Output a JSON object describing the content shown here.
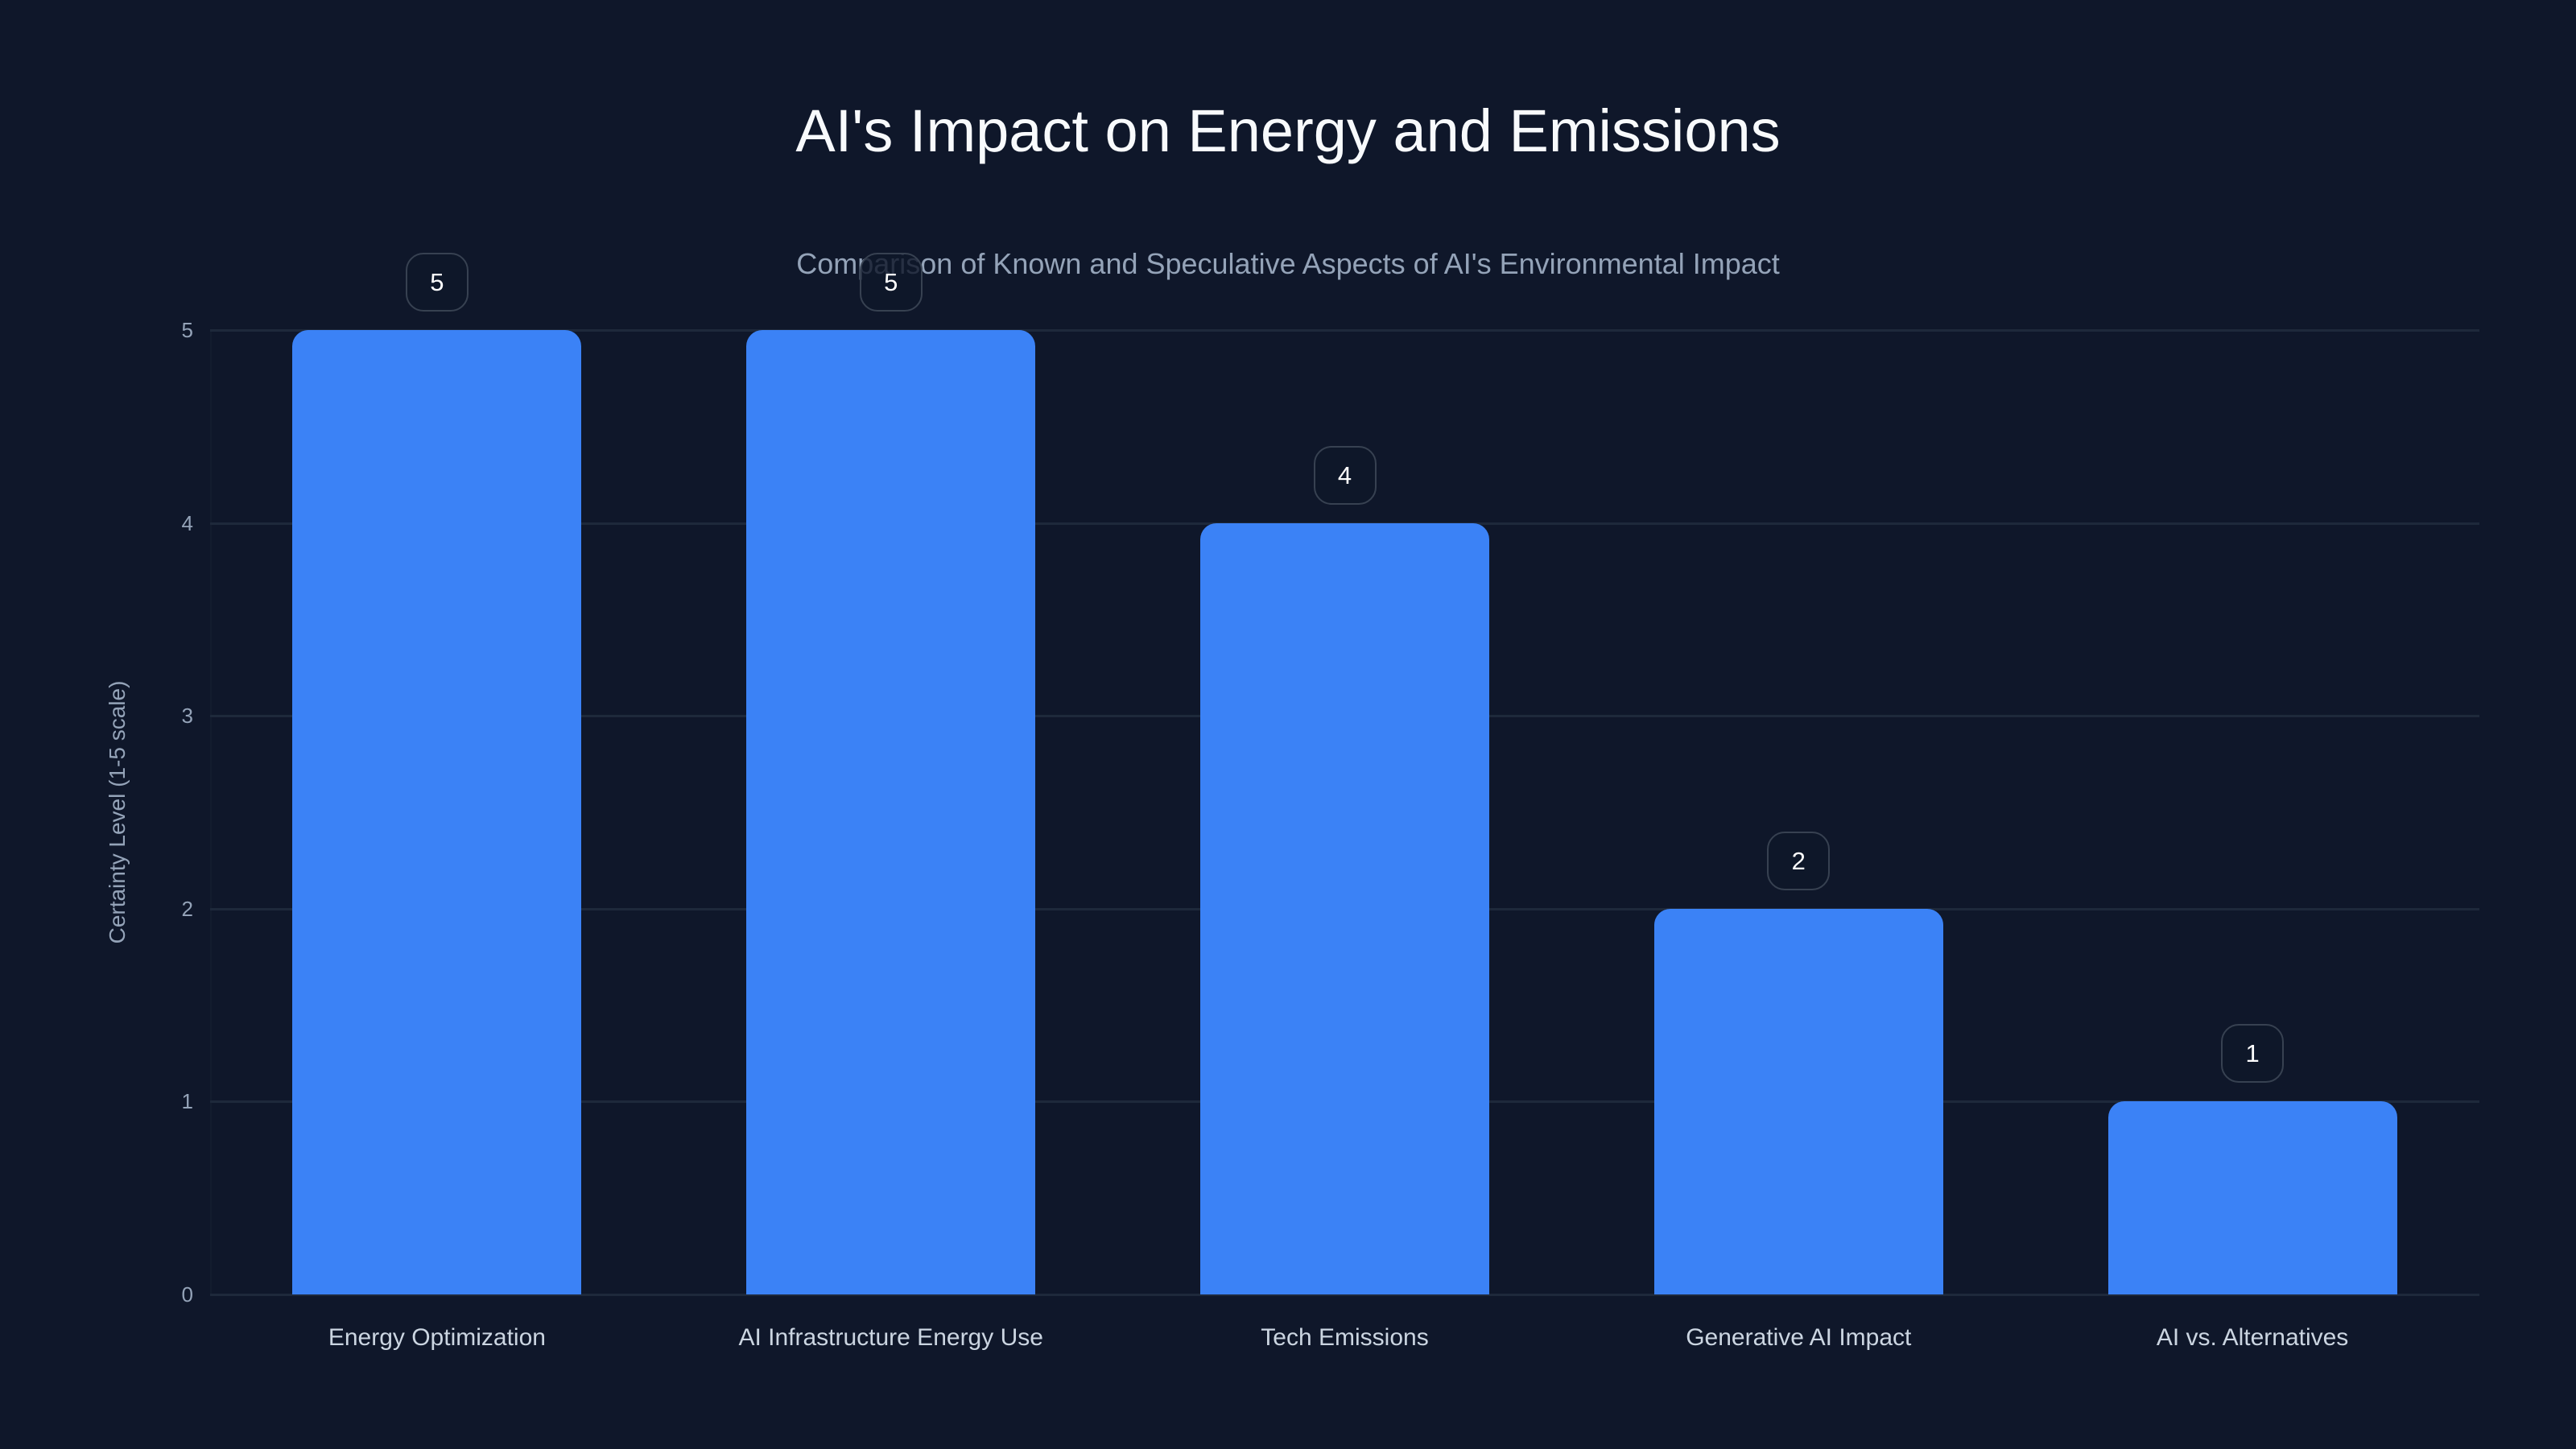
{
  "title": "AI's Impact on Energy and Emissions",
  "subtitle": "Comparison of Known and Speculative Aspects of AI's Environmental Impact",
  "colors": {
    "background": "#0f172a",
    "bar": "#3b82f6",
    "gridline": "#1e293b",
    "title_text": "#f8fafc",
    "subtitle_text": "#94a3b8",
    "axis_text": "#94a3b8",
    "category_text": "#cbd5e1",
    "value_box_border": "#374151"
  },
  "y_axis": {
    "label": "Certainty Level (1-5 scale)",
    "ticks": [
      "0",
      "1",
      "2",
      "3",
      "4",
      "5"
    ]
  },
  "bars": [
    {
      "category": "Energy Optimization",
      "value": 5,
      "label": "5"
    },
    {
      "category": "AI Infrastructure Energy Use",
      "value": 5,
      "label": "5"
    },
    {
      "category": "Tech Emissions",
      "value": 4,
      "label": "4"
    },
    {
      "category": "Generative AI Impact",
      "value": 2,
      "label": "2"
    },
    {
      "category": "AI vs. Alternatives",
      "value": 1,
      "label": "1"
    }
  ],
  "chart_data": {
    "type": "bar",
    "title": "AI's Impact on Energy and Emissions",
    "subtitle": "Comparison of Known and Speculative Aspects of AI's Environmental Impact",
    "categories": [
      "Energy Optimization",
      "AI Infrastructure Energy Use",
      "Tech Emissions",
      "Generative AI Impact",
      "AI vs. Alternatives"
    ],
    "values": [
      5,
      5,
      4,
      2,
      1
    ],
    "xlabel": "",
    "ylabel": "Certainty Level (1-5 scale)",
    "ylim": [
      0,
      5
    ],
    "yticks": [
      0,
      1,
      2,
      3,
      4,
      5
    ],
    "grid": true,
    "data_labels": true,
    "legend": null
  }
}
